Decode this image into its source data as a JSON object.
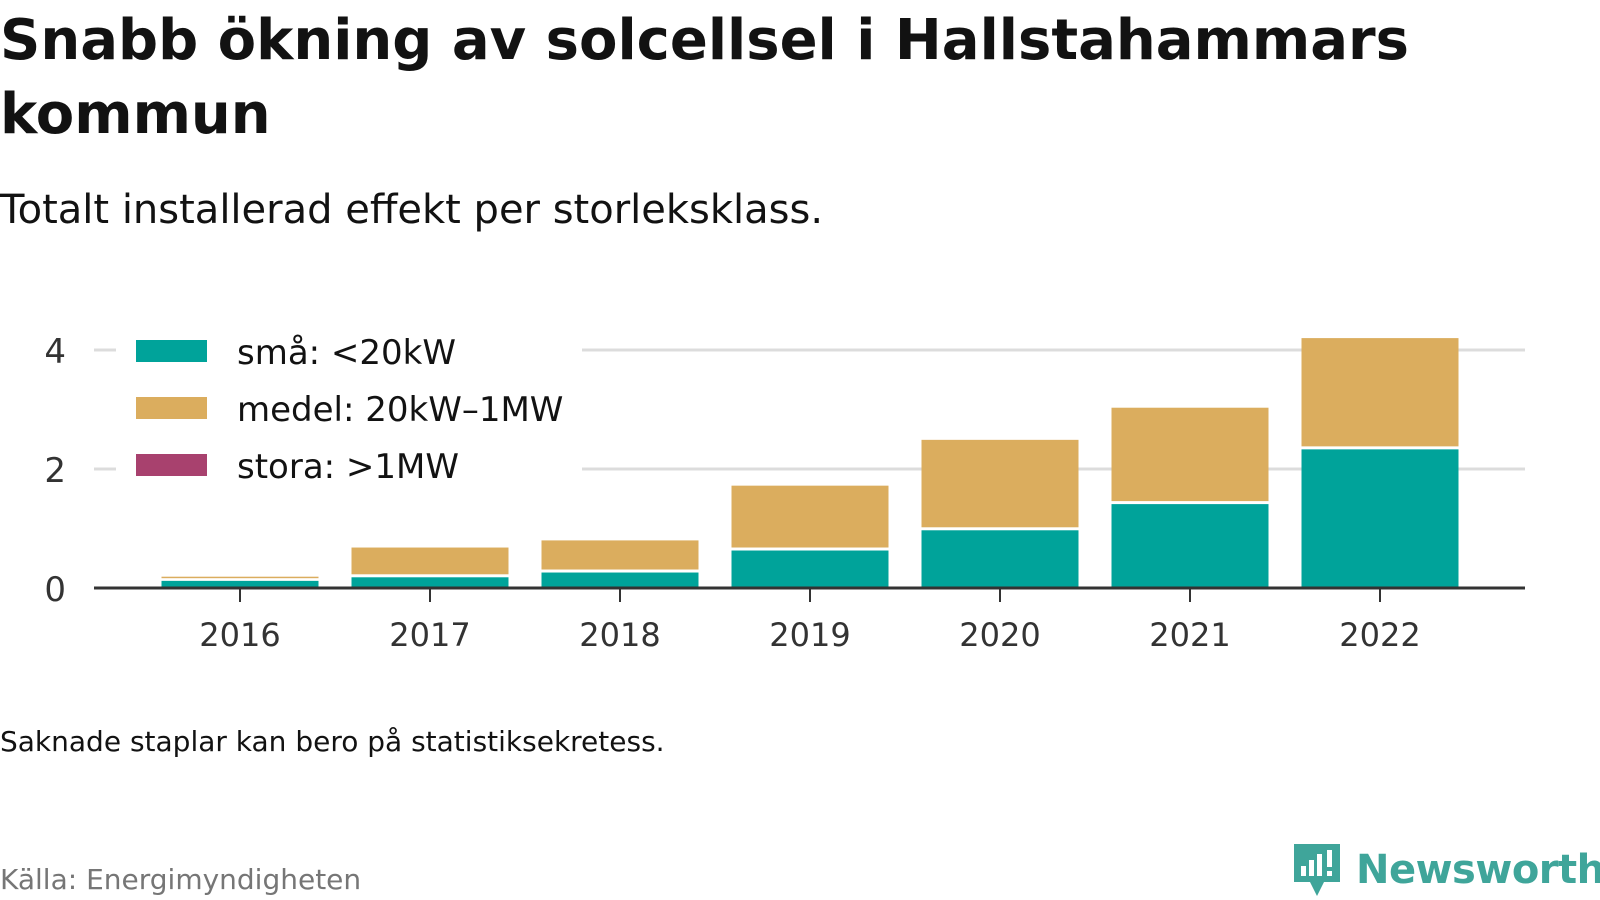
{
  "header": {
    "title": "Snabb ökning av solcellsel i Hallstahammars kommun",
    "subtitle": "Totalt installerad effekt per storleksklass."
  },
  "footer": {
    "note": "Saknade staplar kan bero på statistiksekretess.",
    "source": "Källa: Energimyndigheten",
    "brand": "Newsworthy",
    "brand_icon": "bar-chart-speech-bubble-icon"
  },
  "colors": {
    "sma": "#00a39a",
    "medel": "#dbad5e",
    "stora": "#a8416e",
    "grid": "#dcdcdc",
    "axis": "#333333",
    "brand": "#3fa59a"
  },
  "chart_data": {
    "type": "bar",
    "stacked": true,
    "categories": [
      "2016",
      "2017",
      "2018",
      "2019",
      "2020",
      "2021",
      "2022"
    ],
    "series": [
      {
        "name": "små: <20kW",
        "values": [
          0.12,
          0.18,
          0.26,
          0.63,
          0.97,
          1.41,
          2.33
        ]
      },
      {
        "name": "medel: 20kW–1MW",
        "values": [
          0.07,
          0.5,
          0.54,
          1.09,
          1.52,
          1.62,
          1.87
        ]
      },
      {
        "name": "stora: >1MW",
        "values": [
          0,
          0,
          0,
          0,
          0,
          0,
          0
        ]
      }
    ],
    "ylim": [
      0,
      4.2
    ],
    "yticks": [
      0,
      2,
      4
    ],
    "xlabel": "",
    "ylabel": "",
    "grid": true,
    "legend_position": "top-left"
  }
}
